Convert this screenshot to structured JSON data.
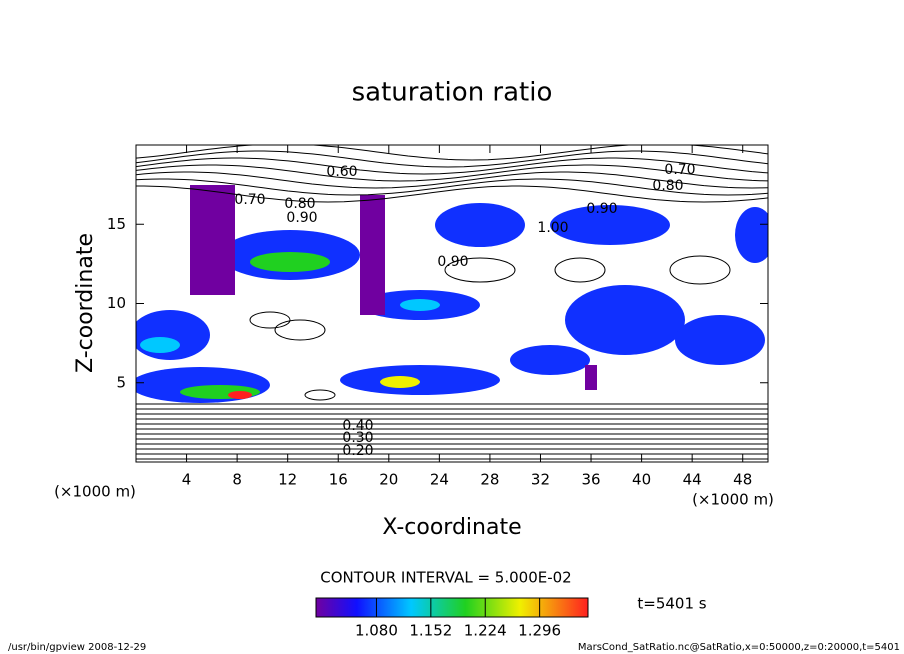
{
  "chart_data": {
    "type": "contour",
    "title": "saturation ratio",
    "x_label": "X-coordinate",
    "y_label": "Z-coordinate",
    "x_unit": "(×1000 m)",
    "y_unit": "(×1000 m)",
    "xlim": [
      0,
      50
    ],
    "xticks": [
      4,
      8,
      12,
      16,
      20,
      24,
      28,
      32,
      36,
      40,
      44,
      48
    ],
    "ylim": [
      0,
      20
    ],
    "yticks": [
      5,
      10,
      15
    ],
    "colorbar": {
      "clim": [
        1.0,
        1.36
      ],
      "ticks": [
        {
          "value": 1.08,
          "label": "1.080"
        },
        {
          "value": 1.152,
          "label": "1.152"
        },
        {
          "value": 1.224,
          "label": "1.224"
        },
        {
          "value": 1.296,
          "label": "1.296"
        }
      ]
    },
    "contour_interval": "CONTOUR INTERVAL = 5.000E-02",
    "time_label": "t=5401 s",
    "contour_labels": [
      {
        "value": 0.6,
        "label": "0.60"
      },
      {
        "value": 0.7,
        "label": "0.70"
      },
      {
        "value": 0.8,
        "label": "0.80"
      },
      {
        "value": 0.9,
        "label": "0.90"
      },
      {
        "value": 0.7,
        "label": "0.70"
      },
      {
        "value": 0.8,
        "label": "0.80"
      },
      {
        "value": 0.9,
        "label": "0.90"
      },
      {
        "value": 1.0,
        "label": "1.00"
      },
      {
        "value": 0.9,
        "label": "0.90"
      },
      {
        "value": 0.4,
        "label": "0.40"
      },
      {
        "value": 0.3,
        "label": "0.30"
      },
      {
        "value": 0.2,
        "label": "0.20"
      }
    ],
    "footer_left": "/usr/bin/gpview  2008-12-29",
    "footer_right": "MarsCond_SatRatio.nc@SatRatio,x=0:50000,z=0:20000,t=5401"
  }
}
